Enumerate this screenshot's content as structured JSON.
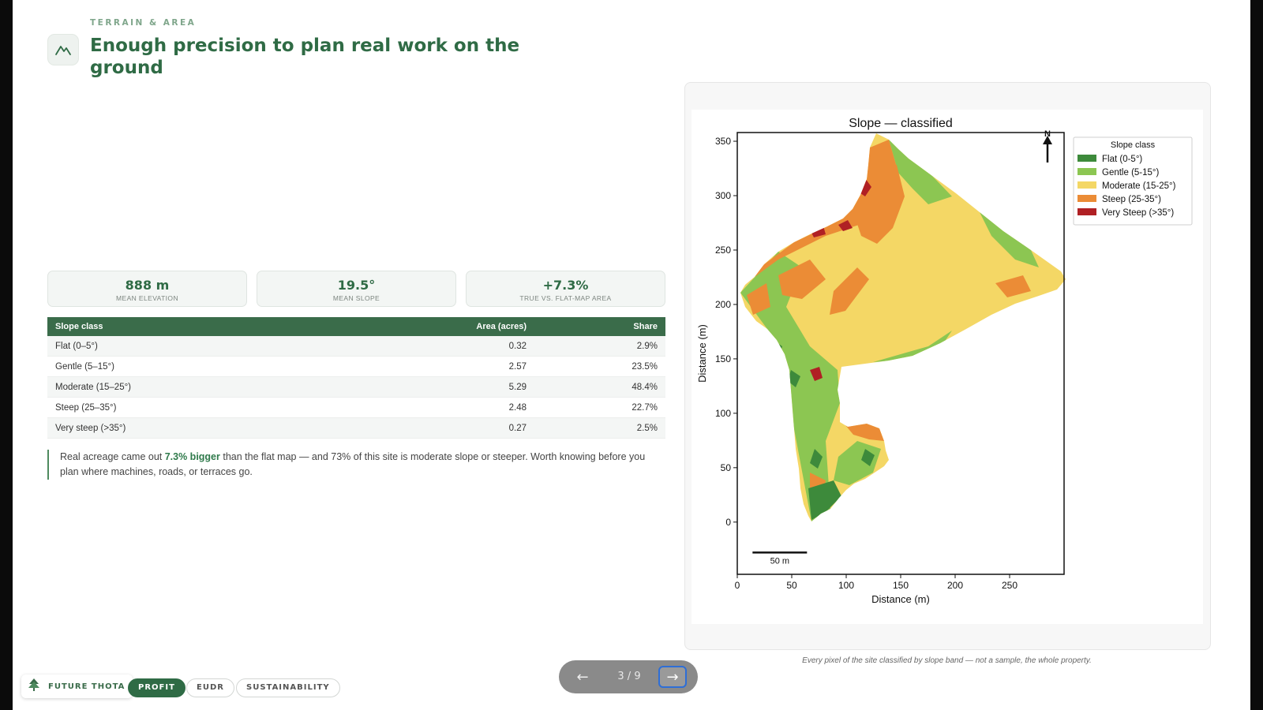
{
  "header": {
    "section_label": "TERRAIN & AREA",
    "title": "Enough precision to plan real work on the ground",
    "icon": "mountain-icon"
  },
  "stats": [
    {
      "value": "888 m",
      "label": "MEAN ELEVATION"
    },
    {
      "value": "19.5°",
      "label": "MEAN SLOPE"
    },
    {
      "value": "+7.3%",
      "label": "TRUE VS. FLAT-MAP AREA"
    }
  ],
  "table": {
    "headers": [
      "Slope class",
      "Area (acres)",
      "Share"
    ],
    "rows": [
      [
        "Flat (0–5°)",
        "0.32",
        "2.9%"
      ],
      [
        "Gentle (5–15°)",
        "2.57",
        "23.5%"
      ],
      [
        "Moderate (15–25°)",
        "5.29",
        "48.4%"
      ],
      [
        "Steep (25–35°)",
        "2.48",
        "22.7%"
      ],
      [
        "Very steep (>35°)",
        "0.27",
        "2.5%"
      ]
    ]
  },
  "note": {
    "before": "Real acreage came out ",
    "highlight": "7.3% bigger",
    "after": " than the flat map — and 73% of this site is moderate slope or steeper. Worth knowing before you plan where machines, roads, or terraces go."
  },
  "chart_data": {
    "type": "map",
    "title": "Slope — classified",
    "xlabel": "Distance (m)",
    "ylabel": "Distance (m)",
    "xlim": [
      0,
      300
    ],
    "ylim": [
      -48,
      358
    ],
    "x_ticks": [
      0,
      50,
      100,
      150,
      200,
      250
    ],
    "y_ticks": [
      0,
      50,
      100,
      150,
      200,
      250,
      300,
      350
    ],
    "north_label": "N",
    "scale_bar": {
      "length_m": 50,
      "label": "50 m"
    },
    "legend": {
      "title": "Slope class",
      "placement": "top-right",
      "entries": [
        {
          "label": "Flat (0-5°)",
          "color": "#3d8a3b"
        },
        {
          "label": "Gentle (5-15°)",
          "color": "#8cc652"
        },
        {
          "label": "Moderate (15-25°)",
          "color": "#f4d765"
        },
        {
          "label": "Steep (25-35°)",
          "color": "#eb8c36"
        },
        {
          "label": "Very Steep (>35°)",
          "color": "#b02024"
        }
      ]
    },
    "caption": "Every pixel of the site classified by slope band — not a sample, the whole property."
  },
  "pager": {
    "prev": "←",
    "count": "3 / 9",
    "next": "→"
  },
  "footer": {
    "brand": "FUTURE THOTA",
    "tabs": [
      "PROFIT",
      "EUDR",
      "SUSTAINABILITY"
    ]
  }
}
